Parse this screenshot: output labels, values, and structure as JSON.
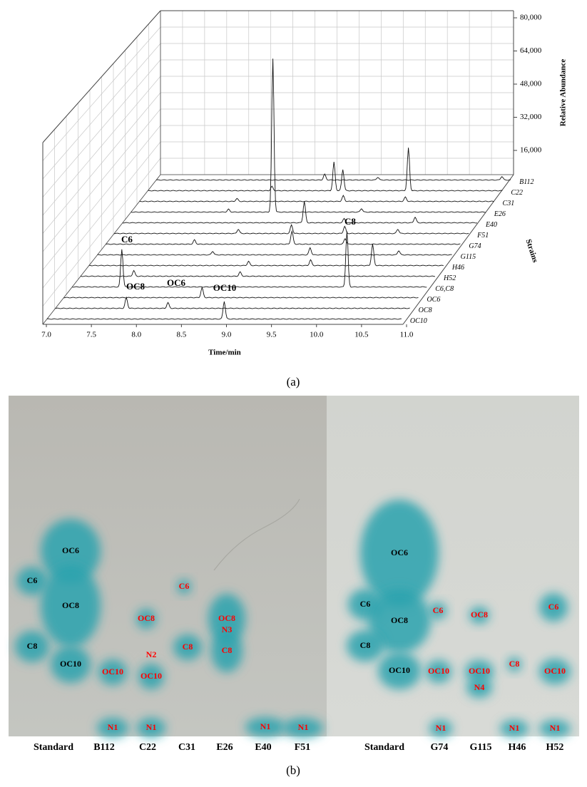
{
  "figure": {
    "panel_a": {
      "yticks": [
        "80,000",
        "64,000",
        "48,000",
        "32,000",
        "16,000"
      ],
      "y_title": "Relative Abundance",
      "xticks": [
        "7.0",
        "7.5",
        "8.0",
        "8.5",
        "9.0",
        "9.5",
        "10.0",
        "10.5",
        "11.0"
      ],
      "x_title": "Time/min",
      "depth_title": "Strains",
      "strains": [
        "B112",
        "C22",
        "C31",
        "E26",
        "E40",
        "F51",
        "G74",
        "G115",
        "H46",
        "H52",
        "C6,C8",
        "OC6",
        "OC8",
        "OC10"
      ],
      "annotations": [
        "C6",
        "C8",
        "OC8",
        "OC6",
        "OC10"
      ]
    },
    "caption_a": "(a)",
    "panel_b": {
      "lanes": [
        {
          "name": "Standard",
          "spots": [
            {
              "label": "OC6",
              "color": "black"
            },
            {
              "label": "C6",
              "color": "black"
            },
            {
              "label": "OC8",
              "color": "black"
            },
            {
              "label": "C8",
              "color": "black"
            },
            {
              "label": "OC10",
              "color": "black"
            }
          ]
        },
        {
          "name": "B112",
          "spots": [
            {
              "label": "OC10",
              "color": "red"
            },
            {
              "label": "N1",
              "color": "red"
            }
          ]
        },
        {
          "name": "C22",
          "spots": [
            {
              "label": "OC8",
              "color": "red"
            },
            {
              "label": "N2",
              "color": "red"
            },
            {
              "label": "OC10",
              "color": "red"
            },
            {
              "label": "N1",
              "color": "red"
            }
          ]
        },
        {
          "name": "C31",
          "spots": [
            {
              "label": "C6",
              "color": "red"
            },
            {
              "label": "C8",
              "color": "red"
            }
          ]
        },
        {
          "name": "E26",
          "spots": [
            {
              "label": "OC8",
              "color": "red"
            },
            {
              "label": "N3",
              "color": "red"
            },
            {
              "label": "C8",
              "color": "red"
            }
          ]
        },
        {
          "name": "E40",
          "spots": [
            {
              "label": "N1",
              "color": "red"
            }
          ]
        },
        {
          "name": "F51",
          "spots": [
            {
              "label": "N1",
              "color": "red"
            }
          ]
        },
        {
          "name": "Standard",
          "spots": [
            {
              "label": "OC6",
              "color": "black"
            },
            {
              "label": "C6",
              "color": "black"
            },
            {
              "label": "OC8",
              "color": "black"
            },
            {
              "label": "C8",
              "color": "black"
            },
            {
              "label": "OC10",
              "color": "black"
            }
          ]
        },
        {
          "name": "G74",
          "spots": [
            {
              "label": "C6",
              "color": "red"
            },
            {
              "label": "OC10",
              "color": "red"
            },
            {
              "label": "N1",
              "color": "red"
            }
          ]
        },
        {
          "name": "G115",
          "spots": [
            {
              "label": "OC8",
              "color": "red"
            },
            {
              "label": "OC10",
              "color": "red"
            },
            {
              "label": "N4",
              "color": "red"
            }
          ]
        },
        {
          "name": "H46",
          "spots": [
            {
              "label": "C8",
              "color": "red"
            },
            {
              "label": "N1",
              "color": "red"
            }
          ]
        },
        {
          "name": "H52",
          "spots": [
            {
              "label": "C6",
              "color": "red"
            },
            {
              "label": "OC10",
              "color": "red"
            },
            {
              "label": "N1",
              "color": "red"
            }
          ]
        }
      ]
    },
    "caption_b": "(b)"
  }
}
